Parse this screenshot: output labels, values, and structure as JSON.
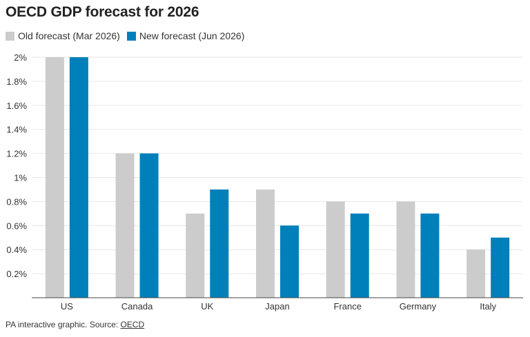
{
  "chart_data": {
    "type": "bar",
    "title": "OECD GDP forecast for 2026",
    "categories": [
      "US",
      "Canada",
      "UK",
      "Japan",
      "France",
      "Germany",
      "Italy"
    ],
    "series": [
      {
        "name": "Old forecast (Mar 2026)",
        "color": "#cccccc",
        "values": [
          2.0,
          1.2,
          0.7,
          0.9,
          0.8,
          0.8,
          0.4
        ]
      },
      {
        "name": "New forecast (Jun 2026)",
        "color": "#0080ba",
        "values": [
          2.0,
          1.2,
          0.9,
          0.6,
          0.7,
          0.7,
          0.5
        ]
      }
    ],
    "y_ticks": [
      "0.2%",
      "0.4%",
      "0.6%",
      "0.8%",
      "1%",
      "1.2%",
      "1.4%",
      "1.6%",
      "1.8%",
      "2%"
    ],
    "ylim": [
      0,
      2
    ],
    "legend": "top-left",
    "grid": true
  },
  "footer": {
    "text": "PA interactive graphic. Source: ",
    "link": "OECD"
  }
}
